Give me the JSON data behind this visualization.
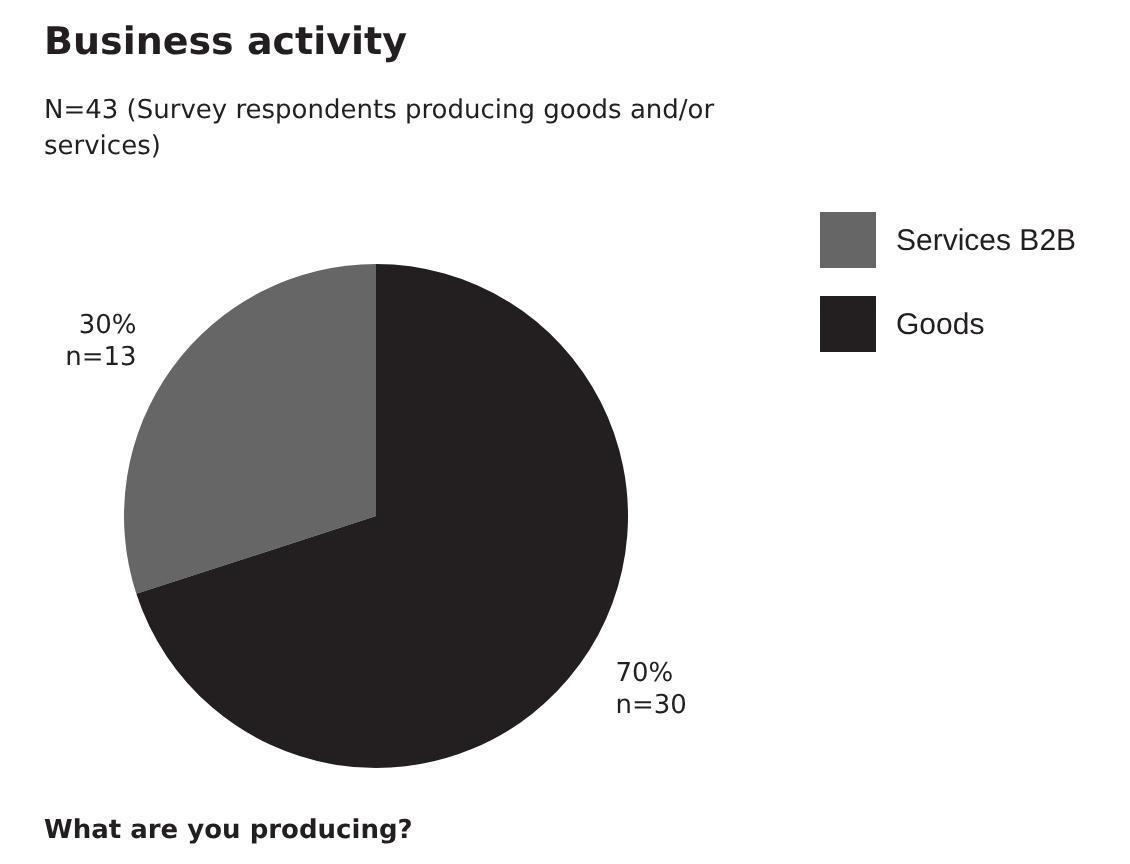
{
  "chart_data": {
    "type": "pie",
    "title": "Business activity",
    "subtitle": "N=43 (Survey respondents producing goods and/or services)",
    "categories": [
      "Services B2B",
      "Goods"
    ],
    "values": [
      30,
      70
    ],
    "colors": [
      "#666666",
      "#231f20"
    ],
    "value_labels": [
      "30%\nn=13",
      "70%\nn=30"
    ],
    "legend": "right",
    "annotations": [
      "What are you producing?"
    ]
  }
}
